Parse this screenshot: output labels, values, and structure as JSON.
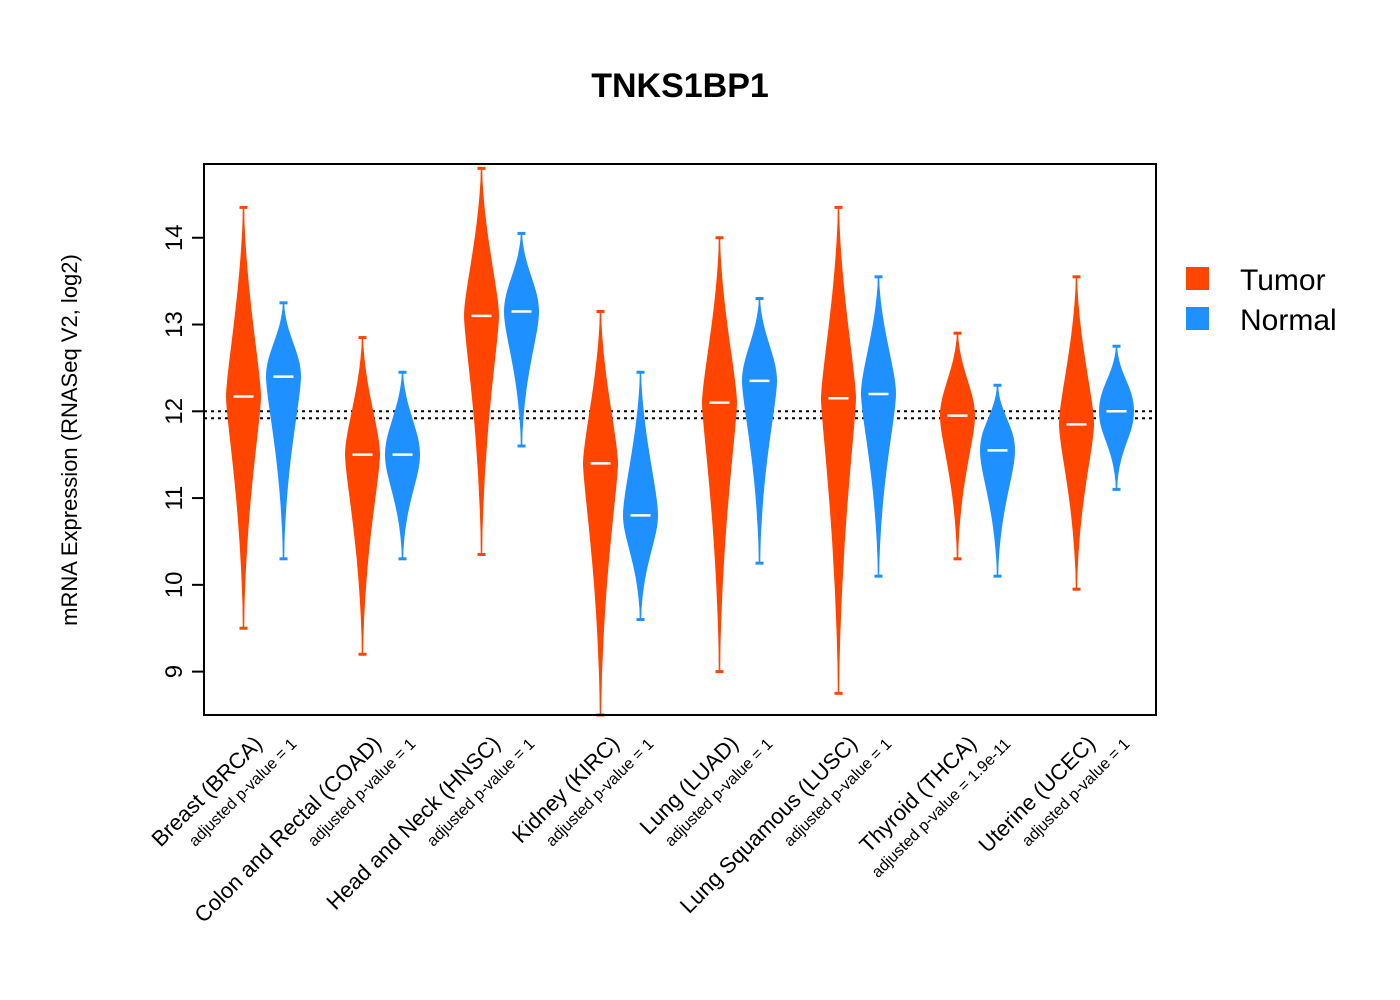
{
  "chart_data": {
    "type": "violin",
    "title": "TNKS1BP1",
    "xlabel": "",
    "ylabel": "mRNA Expression (RNASeq V2, log2)",
    "ylim": [
      8.5,
      14.85
    ],
    "yticks": [
      9,
      10,
      11,
      12,
      13,
      14
    ],
    "legend": {
      "placement": "right",
      "entries": [
        {
          "name": "Tumor",
          "color": "#FF4500"
        },
        {
          "name": "Normal",
          "color": "#1E90FF"
        }
      ]
    },
    "reference_lines": [
      12.0,
      11.92
    ],
    "categories": [
      {
        "label": "Breast (BRCA)",
        "pvalue": "adjusted p-value = 1",
        "tumor": {
          "median": 12.17,
          "min": 9.5,
          "max": 14.35
        },
        "normal": {
          "median": 12.4,
          "min": 10.3,
          "max": 13.25
        }
      },
      {
        "label": "Colon and Rectal (COAD)",
        "pvalue": "adjusted p-value = 1",
        "tumor": {
          "median": 11.5,
          "min": 9.2,
          "max": 12.85
        },
        "normal": {
          "median": 11.5,
          "min": 10.3,
          "max": 12.45
        }
      },
      {
        "label": "Head and Neck (HNSC)",
        "pvalue": "adjusted p-value = 1",
        "tumor": {
          "median": 13.1,
          "min": 10.35,
          "max": 14.8
        },
        "normal": {
          "median": 13.15,
          "min": 11.6,
          "max": 14.05
        }
      },
      {
        "label": "Kidney (KIRC)",
        "pvalue": "adjusted p-value = 1",
        "tumor": {
          "median": 11.4,
          "min": 8.5,
          "max": 13.15
        },
        "normal": {
          "median": 10.8,
          "min": 9.6,
          "max": 12.45
        }
      },
      {
        "label": "Lung (LUAD)",
        "pvalue": "adjusted p-value = 1",
        "tumor": {
          "median": 12.1,
          "min": 9.0,
          "max": 14.0
        },
        "normal": {
          "median": 12.35,
          "min": 10.25,
          "max": 13.3
        }
      },
      {
        "label": "Lung Squamous (LUSC)",
        "pvalue": "adjusted p-value = 1",
        "tumor": {
          "median": 12.15,
          "min": 8.75,
          "max": 14.35
        },
        "normal": {
          "median": 12.2,
          "min": 10.1,
          "max": 13.55
        }
      },
      {
        "label": "Thyroid (THCA)",
        "pvalue": "adjusted p-value = 1.9e-11",
        "tumor": {
          "median": 11.95,
          "min": 10.3,
          "max": 12.9
        },
        "normal": {
          "median": 11.55,
          "min": 10.1,
          "max": 12.3
        }
      },
      {
        "label": "Uterine (UCEC)",
        "pvalue": "adjusted p-value = 1",
        "tumor": {
          "median": 11.85,
          "min": 9.95,
          "max": 13.55
        },
        "normal": {
          "median": 12.0,
          "min": 11.1,
          "max": 12.75
        }
      }
    ]
  }
}
